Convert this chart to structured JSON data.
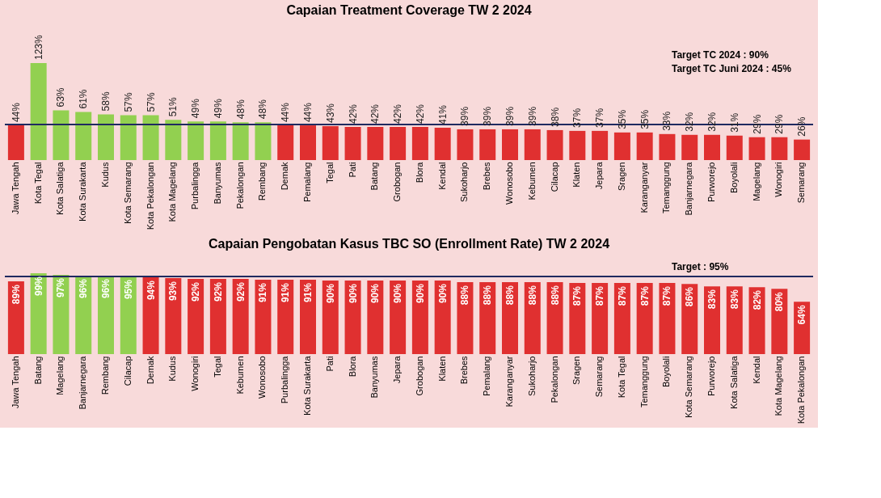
{
  "chart_data": [
    {
      "type": "bar",
      "title": "Capaian Treatment Coverage TW 2 2024",
      "categories": [
        "Jawa Tengah",
        "Kota Tegal",
        "Kota Salatiga",
        "Kota Surakarta",
        "Kudus",
        "Kota Semarang",
        "Kota Pekalongan",
        "Kota Magelang",
        "Purbalingga",
        "Banyumas",
        "Pekalongan",
        "Rembang",
        "Demak",
        "Pemalang",
        "Tegal",
        "Pati",
        "Batang",
        "Grobogan",
        "Blora",
        "Kendal",
        "Sukoharjo",
        "Brebes",
        "Wonosobo",
        "Kebumen",
        "Cilacap",
        "Klaten",
        "Jepara",
        "Sragen",
        "Karanganyar",
        "Temanggung",
        "Banjarnegara",
        "Purworejo",
        "Boyolali",
        "Magelang",
        "Wonogiri",
        "Semarang"
      ],
      "values": [
        44,
        123,
        63,
        61,
        58,
        57,
        57,
        51,
        49,
        49,
        48,
        48,
        44,
        44,
        43,
        42,
        42,
        42,
        42,
        41,
        39,
        39,
        39,
        39,
        38,
        37,
        37,
        35,
        35,
        33,
        32,
        32,
        31,
        29,
        29,
        26
      ],
      "value_labels": [
        "44%",
        "123%",
        "63%",
        "61%",
        "58%",
        "57%",
        "57%",
        "51%",
        "49%",
        "49%",
        "48%",
        "48%",
        "44%",
        "44%",
        "43%",
        "42%",
        "42%",
        "42%",
        "42%",
        "41%",
        "39%",
        "39%",
        "39%",
        "39%",
        "38%",
        "37%",
        "37%",
        "35%",
        "35%",
        "33%",
        "32%",
        "32%",
        "31%",
        "29%",
        "29%",
        "26%"
      ],
      "colors": [
        "#e03030",
        "#92d050",
        "#92d050",
        "#92d050",
        "#92d050",
        "#92d050",
        "#92d050",
        "#92d050",
        "#92d050",
        "#92d050",
        "#92d050",
        "#92d050",
        "#e03030",
        "#e03030",
        "#e03030",
        "#e03030",
        "#e03030",
        "#e03030",
        "#e03030",
        "#e03030",
        "#e03030",
        "#e03030",
        "#e03030",
        "#e03030",
        "#e03030",
        "#e03030",
        "#e03030",
        "#e03030",
        "#e03030",
        "#e03030",
        "#e03030",
        "#e03030",
        "#e03030",
        "#e03030",
        "#e03030",
        "#e03030"
      ],
      "ref_lines": [
        {
          "axis": "y",
          "value": 45,
          "color": "#1f2a60"
        }
      ],
      "annotations": [
        "Target TC 2024 : 90%",
        "Target TC Juni 2024 : 45%"
      ],
      "tick_labels": "x",
      "grid": false
    },
    {
      "type": "bar",
      "title": "Capaian Pengobatan Kasus TBC SO (Enrollment Rate) TW 2 2024",
      "categories": [
        "Jawa Tengah",
        "Batang",
        "Magelang",
        "Banjarnegara",
        "Rembang",
        "Cilacap",
        "Demak",
        "Kudus",
        "Wonogiri",
        "Tegal",
        "Kebumen",
        "Wonosobo",
        "Purbalingga",
        "Kota Surakarta",
        "Pati",
        "Blora",
        "Banyumas",
        "Jepara",
        "Grobogan",
        "Klaten",
        "Brebes",
        "Pemalang",
        "Karanganyar",
        "Sukoharjo",
        "Pekalongan",
        "Sragen",
        "Semarang",
        "Kota Tegal",
        "Temanggung",
        "Boyolali",
        "Kota Semarang",
        "Purworejo",
        "Kota Salatiga",
        "Kendal",
        "Kota Magelang",
        "Kota Pekalongan"
      ],
      "values": [
        89,
        99,
        97,
        96,
        96,
        95,
        94,
        93,
        92,
        92,
        92,
        91,
        91,
        91,
        90,
        90,
        90,
        90,
        90,
        90,
        88,
        88,
        88,
        88,
        88,
        87,
        87,
        87,
        87,
        87,
        86,
        83,
        83,
        82,
        80,
        64
      ],
      "value_labels": [
        "89%",
        "99%",
        "97%",
        "96%",
        "96%",
        "95%",
        "94%",
        "93%",
        "92%",
        "92%",
        "92%",
        "91%",
        "91%",
        "91%",
        "90%",
        "90%",
        "90%",
        "90%",
        "90%",
        "90%",
        "88%",
        "88%",
        "88%",
        "88%",
        "88%",
        "87%",
        "87%",
        "87%",
        "87%",
        "87%",
        "86%",
        "83%",
        "83%",
        "82%",
        "80%",
        "64%"
      ],
      "colors": [
        "#e03030",
        "#92d050",
        "#92d050",
        "#92d050",
        "#92d050",
        "#92d050",
        "#e03030",
        "#e03030",
        "#e03030",
        "#e03030",
        "#e03030",
        "#e03030",
        "#e03030",
        "#e03030",
        "#e03030",
        "#e03030",
        "#e03030",
        "#e03030",
        "#e03030",
        "#e03030",
        "#e03030",
        "#e03030",
        "#e03030",
        "#e03030",
        "#e03030",
        "#e03030",
        "#e03030",
        "#e03030",
        "#e03030",
        "#e03030",
        "#e03030",
        "#e03030",
        "#e03030",
        "#e03030",
        "#e03030",
        "#e03030"
      ],
      "ref_lines": [
        {
          "axis": "y",
          "value": 95,
          "color": "#1f2a60"
        }
      ],
      "annotations": [
        "Target : 95%"
      ],
      "tick_labels": "x",
      "grid": false
    }
  ]
}
